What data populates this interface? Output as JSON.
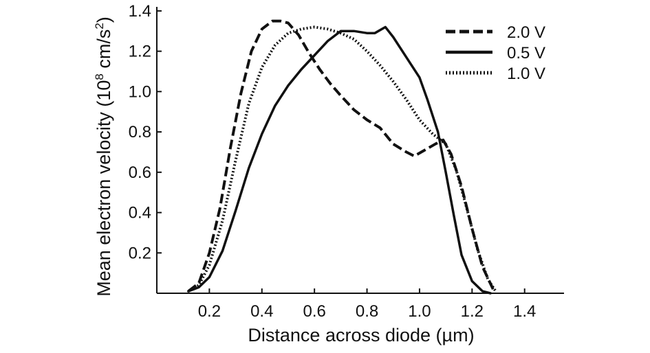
{
  "chart_data": {
    "type": "line",
    "xlabel": "Distance across diode (µm)",
    "ylabel_main": "Mean electron velocity (10",
    "ylabel_exp1": "8",
    "ylabel_mid": " cm/s",
    "ylabel_exp2": "2",
    "ylabel_end": ")",
    "xlim": [
      0.0,
      1.55
    ],
    "ylim": [
      0.0,
      1.42
    ],
    "x_ticks": [
      0.2,
      0.4,
      0.6,
      0.8,
      1.0,
      1.2,
      1.4
    ],
    "x_tick_labels": [
      "0.2",
      "0.4",
      "0.6",
      "0.8",
      "1.0",
      "1.2",
      "1.4"
    ],
    "y_ticks": [
      0.2,
      0.4,
      0.6,
      0.8,
      1.0,
      1.2,
      1.4
    ],
    "y_tick_labels": [
      "0.2",
      "0.4",
      "0.6",
      "0.8",
      "1.0",
      "1.2",
      "1.4"
    ],
    "legend_position": "top-right",
    "series": [
      {
        "name": "2.0 V",
        "style": "dashed",
        "x": [
          0.12,
          0.16,
          0.2,
          0.24,
          0.28,
          0.32,
          0.36,
          0.4,
          0.44,
          0.47,
          0.5,
          0.54,
          0.58,
          0.62,
          0.66,
          0.7,
          0.75,
          0.8,
          0.85,
          0.9,
          0.95,
          0.98,
          1.02,
          1.06,
          1.09,
          1.12,
          1.16,
          1.2,
          1.24,
          1.28
        ],
        "y": [
          0.01,
          0.05,
          0.2,
          0.42,
          0.72,
          0.99,
          1.2,
          1.31,
          1.35,
          1.35,
          1.34,
          1.28,
          1.19,
          1.11,
          1.04,
          0.98,
          0.91,
          0.86,
          0.82,
          0.74,
          0.7,
          0.68,
          0.71,
          0.74,
          0.76,
          0.69,
          0.53,
          0.32,
          0.13,
          0.02
        ]
      },
      {
        "name": "0.5 V",
        "style": "solid",
        "x": [
          0.12,
          0.16,
          0.2,
          0.25,
          0.3,
          0.35,
          0.4,
          0.45,
          0.5,
          0.55,
          0.6,
          0.65,
          0.7,
          0.75,
          0.8,
          0.83,
          0.87,
          0.9,
          0.95,
          1.0,
          1.03,
          1.07,
          1.1,
          1.13,
          1.16,
          1.2,
          1.24,
          1.27
        ],
        "y": [
          0.01,
          0.03,
          0.08,
          0.21,
          0.41,
          0.62,
          0.79,
          0.93,
          1.03,
          1.11,
          1.18,
          1.25,
          1.3,
          1.3,
          1.29,
          1.29,
          1.32,
          1.27,
          1.17,
          1.07,
          0.96,
          0.8,
          0.6,
          0.39,
          0.19,
          0.06,
          0.01,
          0.0
        ]
      },
      {
        "name": "1.0 V",
        "style": "dotted",
        "x": [
          0.12,
          0.16,
          0.2,
          0.25,
          0.3,
          0.35,
          0.4,
          0.45,
          0.5,
          0.55,
          0.6,
          0.65,
          0.7,
          0.75,
          0.8,
          0.85,
          0.9,
          0.95,
          1.0,
          1.05,
          1.1,
          1.14,
          1.18,
          1.22,
          1.26,
          1.29
        ],
        "y": [
          0.01,
          0.04,
          0.14,
          0.36,
          0.66,
          0.94,
          1.12,
          1.23,
          1.29,
          1.31,
          1.32,
          1.31,
          1.29,
          1.26,
          1.2,
          1.13,
          1.05,
          0.96,
          0.86,
          0.79,
          0.74,
          0.61,
          0.42,
          0.22,
          0.07,
          0.01
        ]
      }
    ]
  }
}
